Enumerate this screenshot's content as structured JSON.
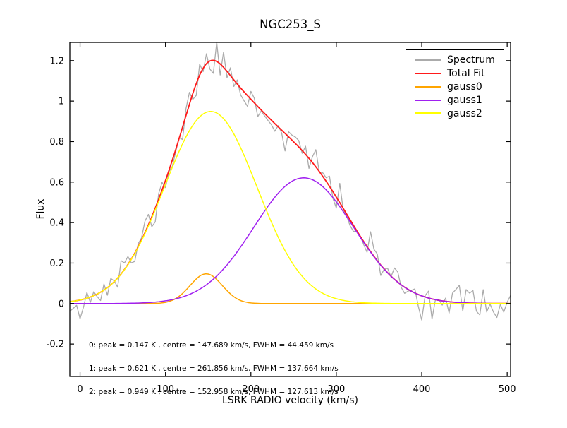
{
  "figure": {
    "title": "NGC253_S"
  },
  "axes": {
    "xlabel": "LSRK RADIO velocity (km/s)",
    "ylabel": "Flux",
    "xlim": [
      -12,
      504
    ],
    "ylim": [
      -0.36,
      1.29
    ],
    "xticks": [
      0,
      100,
      200,
      300,
      400,
      500
    ],
    "yticks": [
      -0.2,
      0,
      0.2,
      0.4,
      0.6,
      0.8,
      1,
      1.2
    ]
  },
  "legend": {
    "entries": [
      {
        "label": "Spectrum",
        "color": "#ababab"
      },
      {
        "label": "Total Fit",
        "color": "#ff1a1a"
      },
      {
        "label": "gauss0",
        "color": "#ffa500"
      },
      {
        "label": "gauss1",
        "color": "#a020f0"
      },
      {
        "label": "gauss2",
        "color": "#ffff00"
      }
    ]
  },
  "annotation": {
    "lines": [
      "0: peak = 0.147 K , centre = 147.689 km/s, FWHM = 44.459 km/s",
      "1: peak = 0.621 K , centre = 261.856 km/s, FWHM = 137.664 km/s",
      "2: peak = 0.949 K , centre = 152.958 km/s, FWHM = 127.613 km/s"
    ]
  },
  "chart_data": {
    "type": "line",
    "title": "NGC253_S",
    "xlabel": "LSRK RADIO velocity (km/s)",
    "ylabel": "Flux",
    "xlim": [
      -12,
      504
    ],
    "ylim": [
      -0.36,
      1.29
    ],
    "grid": false,
    "legend_position": "upper right",
    "gaussians": [
      {
        "name": "gauss0",
        "peak": 0.147,
        "centre": 147.689,
        "fwhm": 44.459,
        "color": "#ffa500"
      },
      {
        "name": "gauss1",
        "peak": 0.621,
        "centre": 261.856,
        "fwhm": 137.664,
        "color": "#a020f0"
      },
      {
        "name": "gauss2",
        "peak": 0.949,
        "centre": 152.958,
        "fwhm": 127.613,
        "color": "#ffff00"
      }
    ],
    "total_fit": {
      "name": "Total Fit",
      "color": "#ff1a1a",
      "definition": "sum of gauss0 + gauss1 + gauss2, peak ~1.20 near 160 km/s"
    },
    "spectrum": {
      "name": "Spectrum",
      "color": "#ababab",
      "x_start": -12,
      "x_end": 504,
      "x_step": 4,
      "model": "total_fit plus gaussian noise",
      "noise_sigma": 0.042,
      "seed": 11
    }
  }
}
